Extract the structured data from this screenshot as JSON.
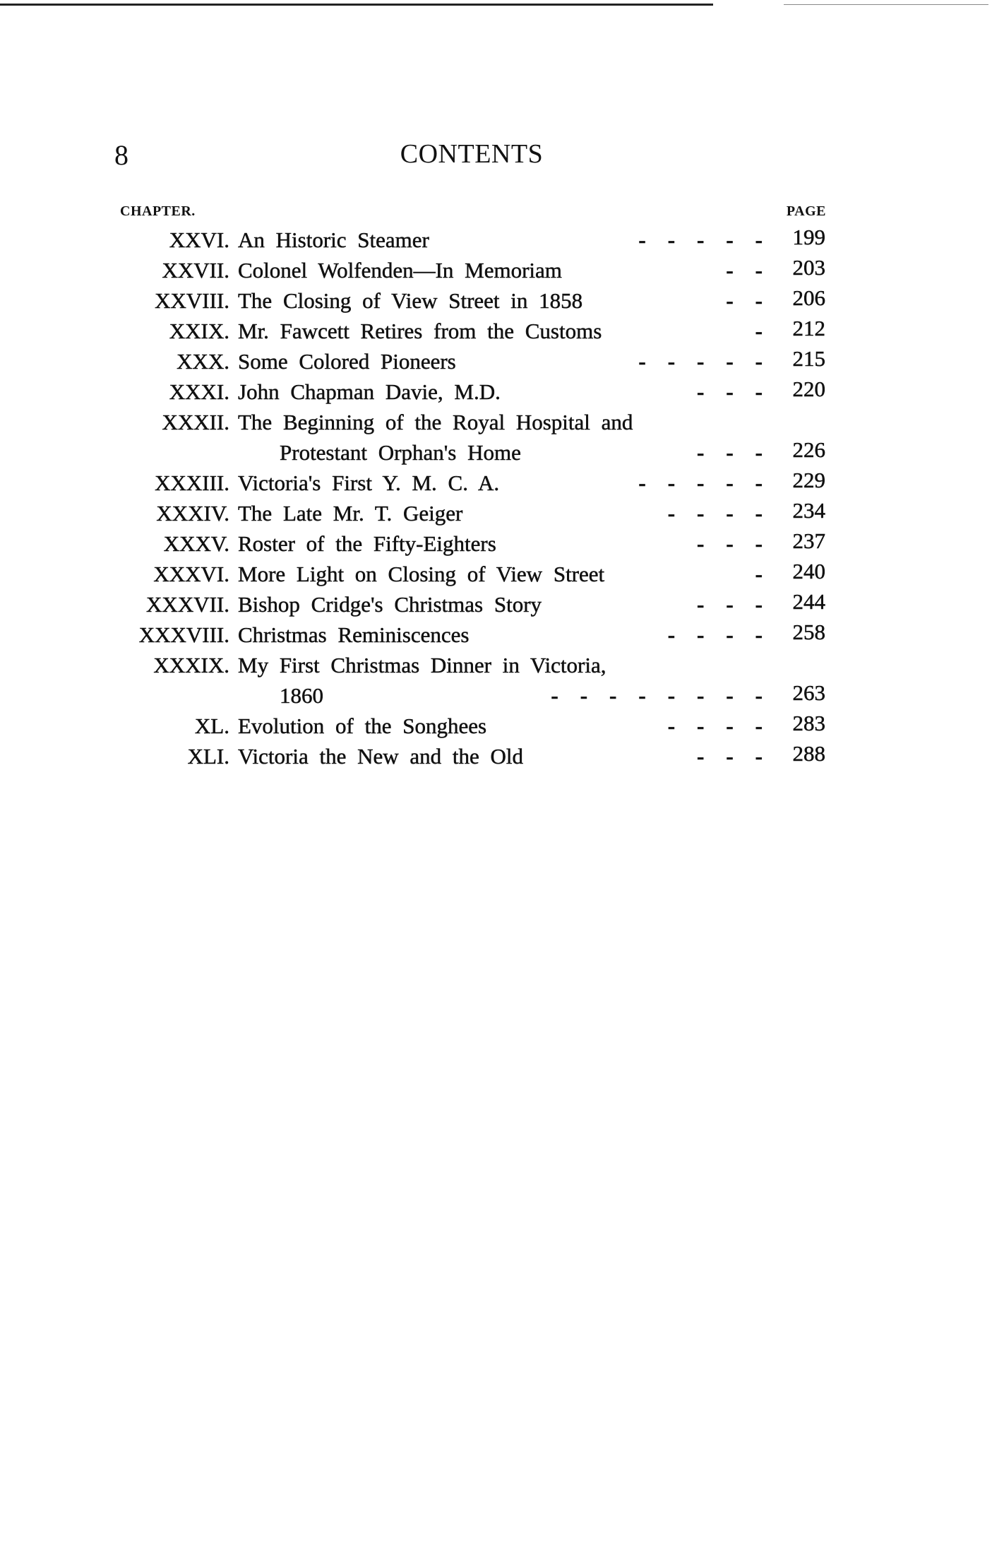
{
  "page_number": "8",
  "title": "CONTENTS",
  "column_headers": {
    "chapter": "CHAPTER.",
    "page": "PAGE"
  },
  "lines": [
    {
      "numeral": "XXVI.",
      "title": "An Historic Steamer",
      "leader": "-    -    -    -    -",
      "page": "199"
    },
    {
      "numeral": "XXVII.",
      "title": "Colonel Wolfenden—In Memoriam",
      "leader": "-    -",
      "page": "203"
    },
    {
      "numeral": "XXVIII.",
      "title": "The Closing of View Street in 1858",
      "leader": "-    -",
      "page": "206"
    },
    {
      "numeral": "XXIX.",
      "title": "Mr. Fawcett Retires from the Customs",
      "leader": "-",
      "page": "212"
    },
    {
      "numeral": "XXX.",
      "title": "Some Colored Pioneers",
      "leader": "-    -    -    -    -",
      "page": "215"
    },
    {
      "numeral": "XXXI.",
      "title": "John Chapman Davie, M.D.",
      "leader": "-    -    -",
      "page": "220"
    },
    {
      "numeral": "XXXII.",
      "title": "The Beginning of the Royal Hospital and",
      "leader": "",
      "page": ""
    },
    {
      "numeral": "",
      "title": "Protestant Orphan's Home",
      "leader": "-    -    -",
      "page": "226"
    },
    {
      "numeral": "XXXIII.",
      "title": "Victoria's First Y. M. C. A.",
      "leader": "-    -    -    -    -",
      "page": "229"
    },
    {
      "numeral": "XXXIV.",
      "title": "The Late Mr. T. Geiger",
      "leader": "-    -    -    -",
      "page": "234"
    },
    {
      "numeral": "XXXV.",
      "title": "Roster of the Fifty-Eighters",
      "leader": "-    -    -",
      "page": "237"
    },
    {
      "numeral": "XXXVI.",
      "title": "More Light on Closing of View Street",
      "leader": "-",
      "page": "240"
    },
    {
      "numeral": "XXXVII.",
      "title": "Bishop Cridge's Christmas Story",
      "leader": "-    -    -",
      "page": "244"
    },
    {
      "numeral": "XXXVIII.",
      "title": "Christmas Reminiscences",
      "leader": "-    -    -    -",
      "page": "258"
    },
    {
      "numeral": "XXXIX.",
      "title": "My First Christmas Dinner in Victoria,",
      "leader": "",
      "page": ""
    },
    {
      "numeral": "",
      "title": "1860",
      "leader": "-    -    -    -    -    -    -    -",
      "page": "263"
    },
    {
      "numeral": "XL.",
      "title": "Evolution of the Songhees",
      "leader": "-    -    -    -",
      "page": "283"
    },
    {
      "numeral": "XLI.",
      "title": "Victoria the New and the Old",
      "leader": "-    -    -",
      "page": "288"
    }
  ]
}
